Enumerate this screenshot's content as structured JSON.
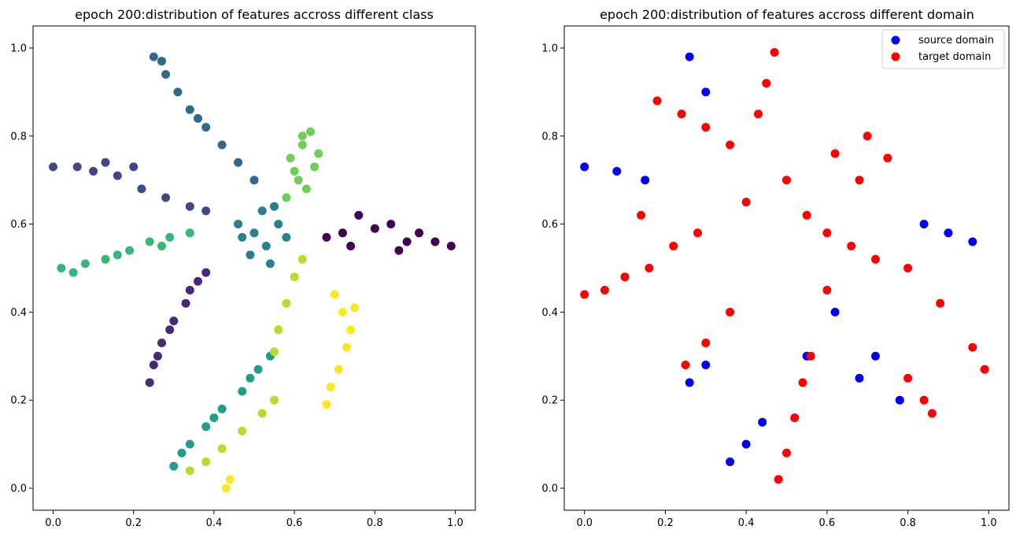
{
  "chart_data": [
    {
      "type": "scatter",
      "title": "epoch 200:distribution of features accross different class",
      "xlabel": "",
      "ylabel": "",
      "xlim": [
        -0.05,
        1.05
      ],
      "ylim": [
        -0.05,
        1.05
      ],
      "xticks": [
        "0.0",
        "0.2",
        "0.4",
        "0.6",
        "0.8",
        "1.0"
      ],
      "yticks": [
        "0.0",
        "0.2",
        "0.4",
        "0.6",
        "0.8",
        "1.0"
      ],
      "grid": false,
      "legend": "none",
      "colormap": "viridis",
      "series": [
        {
          "color": "#440154",
          "points": [
            [
              0.72,
              0.58
            ],
            [
              0.8,
              0.59
            ],
            [
              0.88,
              0.56
            ],
            [
              0.95,
              0.56
            ],
            [
              0.99,
              0.55
            ],
            [
              0.76,
              0.62
            ],
            [
              0.84,
              0.6
            ],
            [
              0.68,
              0.57
            ],
            [
              0.91,
              0.58
            ],
            [
              0.74,
              0.55
            ],
            [
              0.86,
              0.54
            ]
          ]
        },
        {
          "color": "#482878",
          "points": [
            [
              0.36,
              0.47
            ],
            [
              0.33,
              0.42
            ],
            [
              0.3,
              0.38
            ],
            [
              0.27,
              0.33
            ],
            [
              0.25,
              0.28
            ],
            [
              0.24,
              0.24
            ],
            [
              0.34,
              0.45
            ],
            [
              0.29,
              0.36
            ],
            [
              0.26,
              0.3
            ],
            [
              0.38,
              0.49
            ]
          ]
        },
        {
          "color": "#3e4989",
          "points": [
            [
              0.0,
              0.73
            ],
            [
              0.06,
              0.73
            ],
            [
              0.1,
              0.72
            ],
            [
              0.16,
              0.71
            ],
            [
              0.22,
              0.68
            ],
            [
              0.28,
              0.66
            ],
            [
              0.34,
              0.64
            ],
            [
              0.38,
              0.63
            ],
            [
              0.13,
              0.74
            ],
            [
              0.2,
              0.73
            ]
          ]
        },
        {
          "color": "#31688e",
          "points": [
            [
              0.25,
              0.98
            ],
            [
              0.28,
              0.94
            ],
            [
              0.31,
              0.9
            ],
            [
              0.34,
              0.86
            ],
            [
              0.38,
              0.82
            ],
            [
              0.42,
              0.78
            ],
            [
              0.46,
              0.74
            ],
            [
              0.5,
              0.7
            ],
            [
              0.27,
              0.97
            ],
            [
              0.36,
              0.84
            ]
          ]
        },
        {
          "color": "#26828e",
          "points": [
            [
              0.46,
              0.6
            ],
            [
              0.5,
              0.58
            ],
            [
              0.53,
              0.55
            ],
            [
              0.56,
              0.6
            ],
            [
              0.52,
              0.63
            ],
            [
              0.49,
              0.53
            ],
            [
              0.58,
              0.57
            ],
            [
              0.54,
              0.51
            ],
            [
              0.47,
              0.57
            ],
            [
              0.55,
              0.64
            ]
          ]
        },
        {
          "color": "#1f9e89",
          "points": [
            [
              0.3,
              0.05
            ],
            [
              0.34,
              0.1
            ],
            [
              0.38,
              0.14
            ],
            [
              0.42,
              0.18
            ],
            [
              0.47,
              0.22
            ],
            [
              0.51,
              0.27
            ],
            [
              0.54,
              0.3
            ],
            [
              0.32,
              0.08
            ],
            [
              0.4,
              0.16
            ],
            [
              0.49,
              0.25
            ]
          ]
        },
        {
          "color": "#35b779",
          "points": [
            [
              0.02,
              0.5
            ],
            [
              0.08,
              0.51
            ],
            [
              0.13,
              0.52
            ],
            [
              0.19,
              0.54
            ],
            [
              0.24,
              0.56
            ],
            [
              0.29,
              0.57
            ],
            [
              0.34,
              0.58
            ],
            [
              0.05,
              0.49
            ],
            [
              0.16,
              0.53
            ],
            [
              0.27,
              0.55
            ]
          ]
        },
        {
          "color": "#6ece58",
          "points": [
            [
              0.58,
              0.66
            ],
            [
              0.6,
              0.72
            ],
            [
              0.62,
              0.78
            ],
            [
              0.64,
              0.81
            ],
            [
              0.66,
              0.76
            ],
            [
              0.61,
              0.7
            ],
            [
              0.63,
              0.68
            ],
            [
              0.65,
              0.73
            ],
            [
              0.59,
              0.75
            ],
            [
              0.62,
              0.8
            ]
          ]
        },
        {
          "color": "#b5de2b",
          "points": [
            [
              0.6,
              0.48
            ],
            [
              0.58,
              0.42
            ],
            [
              0.56,
              0.36
            ],
            [
              0.55,
              0.31
            ],
            [
              0.62,
              0.52
            ],
            [
              0.34,
              0.04
            ],
            [
              0.38,
              0.06
            ],
            [
              0.42,
              0.09
            ],
            [
              0.47,
              0.13
            ],
            [
              0.52,
              0.17
            ],
            [
              0.55,
              0.2
            ]
          ]
        },
        {
          "color": "#fde725",
          "points": [
            [
              0.7,
              0.44
            ],
            [
              0.72,
              0.4
            ],
            [
              0.74,
              0.36
            ],
            [
              0.73,
              0.32
            ],
            [
              0.71,
              0.27
            ],
            [
              0.69,
              0.23
            ],
            [
              0.68,
              0.19
            ],
            [
              0.75,
              0.41
            ],
            [
              0.44,
              0.02
            ],
            [
              0.43,
              0.0
            ]
          ]
        }
      ]
    },
    {
      "type": "scatter",
      "title": "epoch 200:distribution of features accross different domain",
      "xlabel": "",
      "ylabel": "",
      "xlim": [
        -0.05,
        1.05
      ],
      "ylim": [
        -0.05,
        1.05
      ],
      "xticks": [
        "0.0",
        "0.2",
        "0.4",
        "0.6",
        "0.8",
        "1.0"
      ],
      "yticks": [
        "0.0",
        "0.2",
        "0.4",
        "0.6",
        "0.8",
        "1.0"
      ],
      "grid": false,
      "legend": "top-right",
      "series": [
        {
          "name": "source domain",
          "color": "#0000ff",
          "points": [
            [
              0.0,
              0.73
            ],
            [
              0.08,
              0.72
            ],
            [
              0.15,
              0.7
            ],
            [
              0.26,
              0.98
            ],
            [
              0.3,
              0.9
            ],
            [
              0.96,
              0.56
            ],
            [
              0.9,
              0.58
            ],
            [
              0.84,
              0.6
            ],
            [
              0.36,
              0.06
            ],
            [
              0.4,
              0.1
            ],
            [
              0.44,
              0.15
            ],
            [
              0.3,
              0.28
            ],
            [
              0.26,
              0.24
            ],
            [
              0.68,
              0.25
            ],
            [
              0.72,
              0.3
            ],
            [
              0.78,
              0.2
            ],
            [
              0.62,
              0.4
            ],
            [
              0.55,
              0.3
            ]
          ]
        },
        {
          "name": "target domain",
          "color": "#ff0000",
          "points": [
            [
              0.47,
              0.99
            ],
            [
              0.45,
              0.92
            ],
            [
              0.43,
              0.85
            ],
            [
              0.18,
              0.88
            ],
            [
              0.24,
              0.85
            ],
            [
              0.3,
              0.82
            ],
            [
              0.36,
              0.78
            ],
            [
              0.0,
              0.44
            ],
            [
              0.05,
              0.45
            ],
            [
              0.1,
              0.48
            ],
            [
              0.16,
              0.5
            ],
            [
              0.22,
              0.55
            ],
            [
              0.28,
              0.58
            ],
            [
              0.5,
              0.7
            ],
            [
              0.55,
              0.62
            ],
            [
              0.6,
              0.58
            ],
            [
              0.66,
              0.55
            ],
            [
              0.72,
              0.52
            ],
            [
              0.8,
              0.5
            ],
            [
              0.88,
              0.42
            ],
            [
              0.96,
              0.32
            ],
            [
              0.99,
              0.27
            ],
            [
              0.48,
              0.02
            ],
            [
              0.5,
              0.08
            ],
            [
              0.52,
              0.16
            ],
            [
              0.54,
              0.24
            ],
            [
              0.56,
              0.3
            ],
            [
              0.25,
              0.28
            ],
            [
              0.3,
              0.33
            ],
            [
              0.36,
              0.4
            ],
            [
              0.8,
              0.25
            ],
            [
              0.84,
              0.2
            ],
            [
              0.86,
              0.17
            ],
            [
              0.7,
              0.8
            ],
            [
              0.75,
              0.75
            ],
            [
              0.68,
              0.7
            ],
            [
              0.62,
              0.76
            ],
            [
              0.4,
              0.65
            ],
            [
              0.6,
              0.45
            ],
            [
              0.14,
              0.62
            ]
          ]
        }
      ]
    }
  ]
}
